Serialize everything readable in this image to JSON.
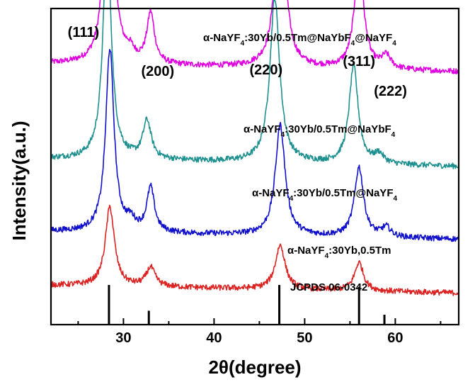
{
  "chart_data": {
    "type": "line",
    "xlabel": "2θ(degree)",
    "ylabel": "Intensity(a.u.)",
    "xlim": [
      22,
      67
    ],
    "x_ticks": [
      30,
      40,
      50,
      60
    ],
    "y_tick_labels_shown": false,
    "grid": false,
    "legend": "inline labels above each curve",
    "series": [
      {
        "name": "α-NaYF4:30Yb/0.5Tm@NaYbF4@NaYF4",
        "color": "#e000e0",
        "baseline_level": 0.8,
        "peaks": [
          {
            "x": 28.4,
            "height": 0.81,
            "width": 0.55
          },
          {
            "x": 30.7,
            "height": 0.03,
            "width": 0.6
          },
          {
            "x": 33.0,
            "height": 0.16,
            "width": 0.5
          },
          {
            "x": 47.3,
            "height": 0.55,
            "width": 0.65
          },
          {
            "x": 56.0,
            "height": 0.35,
            "width": 0.6
          },
          {
            "x": 59.0,
            "height": 0.04,
            "width": 0.6
          }
        ]
      },
      {
        "name": "α-NaYF4:30Yb/0.5Tm@NaYbF4",
        "color": "#1e9090",
        "baseline_level": 0.5,
        "peaks": [
          {
            "x": 28.2,
            "height": 0.7,
            "width": 0.55
          },
          {
            "x": 32.6,
            "height": 0.12,
            "width": 0.55
          },
          {
            "x": 46.7,
            "height": 0.52,
            "width": 0.65
          },
          {
            "x": 55.4,
            "height": 0.31,
            "width": 0.6
          },
          {
            "x": 58.2,
            "height": 0.03,
            "width": 0.6
          }
        ]
      },
      {
        "name": "α-NaYF4:30Yb/0.5Tm@NaYF4",
        "color": "#1010cc",
        "baseline_level": 0.27,
        "peaks": [
          {
            "x": 28.5,
            "height": 0.58,
            "width": 0.55
          },
          {
            "x": 30.8,
            "height": 0.03,
            "width": 0.6
          },
          {
            "x": 33.0,
            "height": 0.14,
            "width": 0.5
          },
          {
            "x": 47.3,
            "height": 0.35,
            "width": 0.65
          },
          {
            "x": 56.0,
            "height": 0.22,
            "width": 0.6
          },
          {
            "x": 59.0,
            "height": 0.03,
            "width": 0.6
          }
        ]
      },
      {
        "name": "α-NaYF4:30Yb,0.5Tm",
        "color": "#dd2222",
        "baseline_level": 0.1,
        "peaks": [
          {
            "x": 28.5,
            "height": 0.25,
            "width": 0.6
          },
          {
            "x": 33.0,
            "height": 0.06,
            "width": 0.6
          },
          {
            "x": 47.3,
            "height": 0.14,
            "width": 0.65
          },
          {
            "x": 56.0,
            "height": 0.09,
            "width": 0.6
          }
        ]
      }
    ],
    "reference": {
      "name": "JCPDS 06-0342",
      "lines": [
        {
          "x": 28.4,
          "intensity": 1.0
        },
        {
          "x": 32.8,
          "intensity": 0.35
        },
        {
          "x": 47.2,
          "intensity": 1.0
        },
        {
          "x": 56.0,
          "intensity": 0.95
        },
        {
          "x": 58.8,
          "intensity": 0.25
        }
      ]
    },
    "peak_annotations": [
      {
        "text": "(111)",
        "x": 28.4
      },
      {
        "text": "(200)",
        "x": 33.0
      },
      {
        "text": "(220)",
        "x": 47.3
      },
      {
        "text": "(311)",
        "x": 56.0
      },
      {
        "text": "(222)",
        "x": 59.0
      }
    ]
  }
}
